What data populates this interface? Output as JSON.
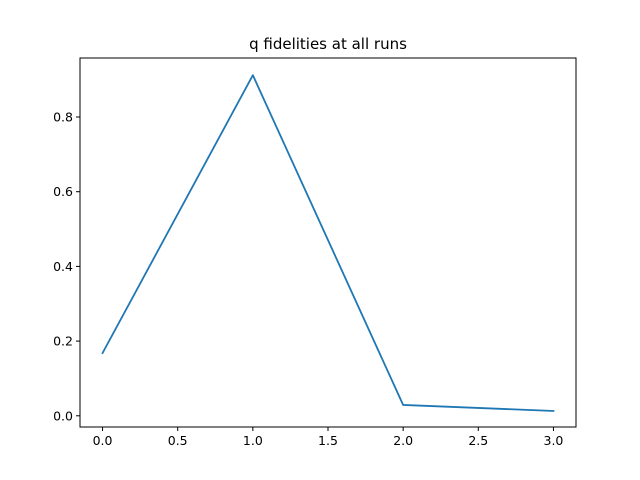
{
  "chart_data": {
    "type": "line",
    "title": "q fidelities at all runs",
    "xlabel": "",
    "ylabel": "",
    "x": [
      0,
      1,
      2,
      3
    ],
    "series": [
      {
        "values": [
          0.168,
          0.912,
          0.029,
          0.013
        ],
        "color": "#1f77b4"
      }
    ],
    "xlim": [
      -0.15,
      3.15
    ],
    "ylim": [
      -0.03,
      0.958
    ],
    "x_ticks": [
      0.0,
      0.5,
      1.0,
      1.5,
      2.0,
      2.5,
      3.0
    ],
    "x_tick_labels": [
      "0.0",
      "0.5",
      "1.0",
      "1.5",
      "2.0",
      "2.5",
      "3.0"
    ],
    "y_ticks": [
      0.0,
      0.2,
      0.4,
      0.6,
      0.8
    ],
    "y_tick_labels": [
      "0.0",
      "0.2",
      "0.4",
      "0.6",
      "0.8"
    ],
    "grid": false,
    "legend": "none"
  }
}
